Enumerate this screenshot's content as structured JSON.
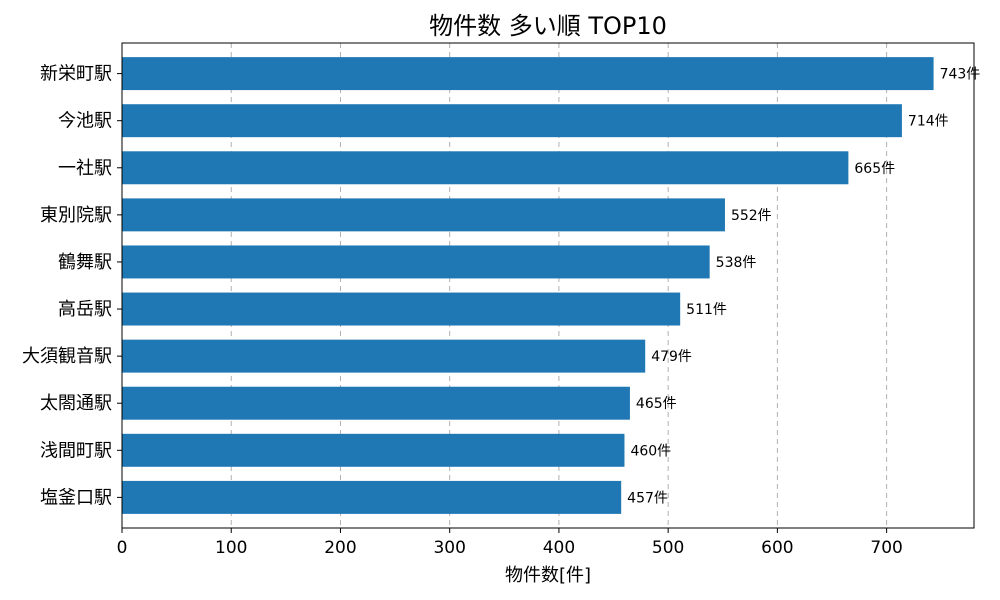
{
  "chart_data": {
    "type": "bar",
    "orientation": "horizontal",
    "title": "物件数 多い順 TOP10",
    "xlabel": "物件数[件]",
    "ylabel": "",
    "categories": [
      "新栄町駅",
      "今池駅",
      "一社駅",
      "東別院駅",
      "鶴舞駅",
      "高岳駅",
      "大須観音駅",
      "太閤通駅",
      "浅間町駅",
      "塩釜口駅"
    ],
    "values": [
      743,
      714,
      665,
      552,
      538,
      511,
      479,
      465,
      460,
      457
    ],
    "value_suffix": "件",
    "xlim": [
      0,
      780
    ],
    "xticks": [
      0,
      100,
      200,
      300,
      400,
      500,
      600,
      700
    ],
    "grid": "x-dashed",
    "bar_color": "#1f77b4"
  }
}
